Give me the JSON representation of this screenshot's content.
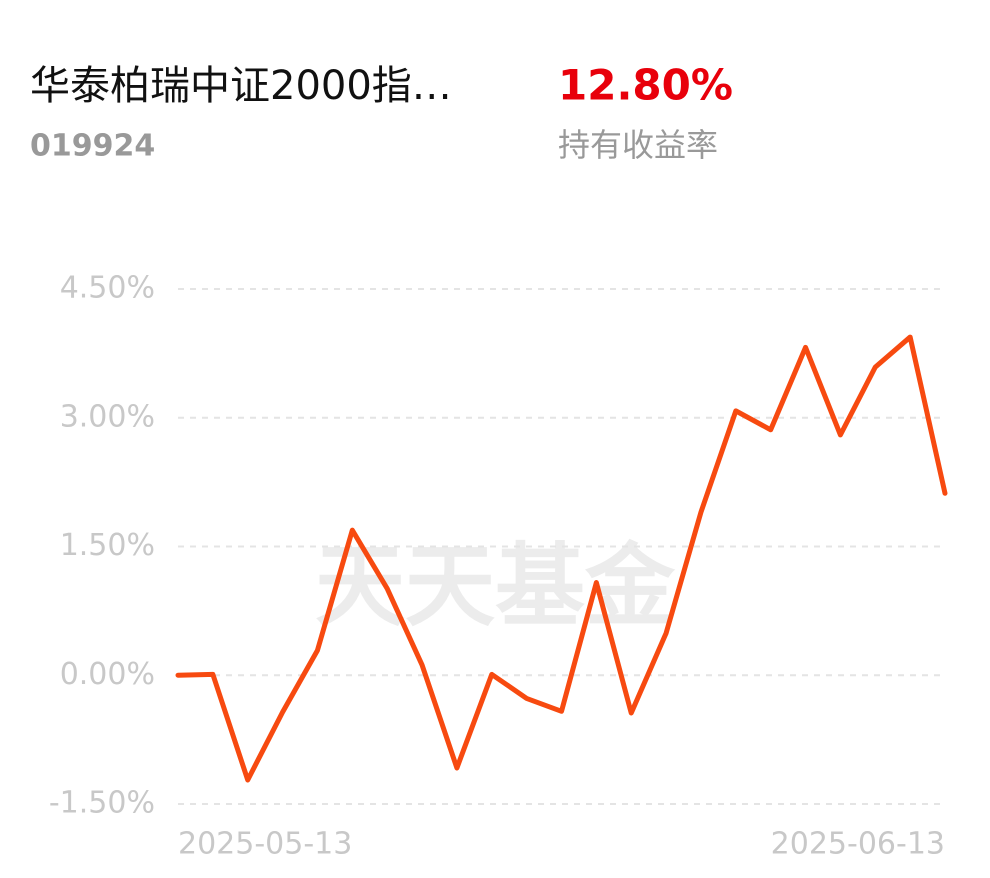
{
  "header": {
    "title": "华泰柏瑞中证2000指…",
    "code": "019924",
    "return_value": "12.80%",
    "return_label": "持有收益率"
  },
  "chart_data": {
    "type": "line",
    "watermark": "天天基金",
    "categories": [
      "2025-05-13",
      null,
      null,
      null,
      null,
      null,
      null,
      null,
      null,
      null,
      null,
      null,
      null,
      null,
      null,
      null,
      null,
      null,
      null,
      null,
      null,
      null,
      "2025-06-13"
    ],
    "series": [
      {
        "name": "持有收益率",
        "color": "#f74a10",
        "values": [
          0.0,
          0.01,
          -1.22,
          -0.43,
          0.29,
          1.69,
          1.01,
          0.12,
          -1.08,
          0.01,
          -0.27,
          -0.42,
          1.08,
          -0.44,
          0.49,
          1.9,
          3.08,
          2.86,
          3.82,
          2.8,
          3.59,
          3.94,
          2.12
        ]
      }
    ],
    "ylim": [
      -1.5,
      4.5
    ],
    "yticks": [
      {
        "value": -1.5,
        "label": "-1.50%"
      },
      {
        "value": 0,
        "label": "0.00%"
      },
      {
        "value": 1.5,
        "label": "1.50%"
      },
      {
        "value": 3,
        "label": "3.00%"
      },
      {
        "value": 4.5,
        "label": "4.50%"
      }
    ],
    "grid": true
  }
}
